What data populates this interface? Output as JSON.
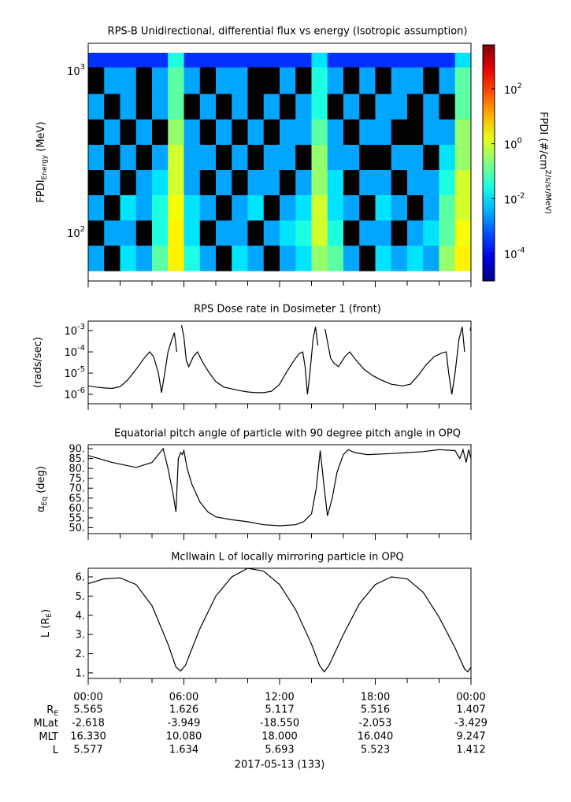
{
  "chart_data": [
    {
      "type": "heatmap",
      "title": "RPS-B  Unidirectional, differential flux vs energy (Isotropic assumption)",
      "ylabel": [
        {
          "text": "FPDI"
        },
        {
          "text": "Energy",
          "sub": true
        },
        {
          "text": " (MeV)"
        }
      ],
      "yscale": "log",
      "xlim": [
        0,
        24
      ],
      "ylim": [
        50.6,
        1480
      ],
      "yticks": [
        {
          "value": 100,
          "label": "10^2"
        },
        {
          "value": 1000,
          "label": "10^3"
        }
      ],
      "time_edges": [
        0,
        1,
        2,
        3,
        4,
        5,
        6,
        7,
        8,
        9,
        10,
        11,
        12,
        13,
        14,
        15,
        16,
        17,
        18,
        19,
        20,
        21,
        22,
        23,
        24
      ],
      "energy_edges": [
        58.5,
        84,
        120,
        172,
        246,
        352,
        505,
        725,
        1057,
        1294
      ],
      "z": [
        [
          0.003,
          null,
          0.01,
          0.003,
          0.1,
          3,
          0.03,
          0.003,
          null,
          0.01,
          0.003,
          null,
          0.003,
          0.01,
          0.3,
          0.1,
          0.003,
          null,
          0.01,
          0.003,
          0.01,
          0.003,
          0.3,
          3
        ],
        [
          null,
          0.003,
          0.003,
          null,
          0.03,
          3,
          0.01,
          null,
          0.003,
          0.003,
          null,
          0.003,
          0.01,
          0.03,
          1,
          0.03,
          null,
          0.003,
          0.003,
          null,
          0.003,
          0.01,
          0.1,
          2
        ],
        [
          0.003,
          null,
          0.01,
          0.003,
          0.03,
          2,
          0.01,
          0.003,
          null,
          0.003,
          0.01,
          null,
          0.003,
          0.01,
          1,
          0.01,
          0.003,
          null,
          0.01,
          0.003,
          null,
          0.003,
          0.1,
          1
        ],
        [
          null,
          0.003,
          null,
          0.003,
          0.01,
          1,
          0.003,
          null,
          0.003,
          null,
          0.003,
          0.003,
          null,
          0.003,
          0.3,
          0.01,
          null,
          0.003,
          0.003,
          null,
          0.003,
          0.003,
          0.03,
          1
        ],
        [
          0.003,
          null,
          0.003,
          null,
          0.003,
          1,
          0.003,
          0.003,
          null,
          0.003,
          null,
          0.003,
          0.003,
          null,
          0.3,
          0.003,
          0.003,
          null,
          null,
          0.003,
          0.003,
          null,
          0.01,
          0.3
        ],
        [
          null,
          0.003,
          null,
          0.003,
          null,
          0.3,
          0.003,
          null,
          0.003,
          null,
          0.003,
          null,
          0.003,
          0.003,
          0.1,
          0.003,
          null,
          0.003,
          0.003,
          null,
          null,
          0.003,
          0.003,
          0.3
        ],
        [
          0.003,
          null,
          0.003,
          null,
          0.003,
          0.1,
          null,
          0.003,
          null,
          0.003,
          null,
          0.003,
          null,
          0.003,
          0.03,
          null,
          0.003,
          null,
          0.003,
          0.003,
          null,
          0.003,
          null,
          0.1
        ],
        [
          null,
          0.003,
          0.003,
          null,
          0.003,
          0.1,
          0.003,
          null,
          0.003,
          0.003,
          null,
          null,
          0.003,
          null,
          0.03,
          0.003,
          null,
          0.003,
          null,
          0.003,
          0.003,
          null,
          0.003,
          0.1
        ],
        [
          0.0003,
          0.0003,
          0.0003,
          0.0003,
          0.0003,
          0.03,
          0.0003,
          0.0003,
          0.0003,
          0.0003,
          0.0003,
          0.0003,
          0.0003,
          0.0003,
          0.01,
          0.0003,
          0.0003,
          0.0003,
          0.0003,
          0.0003,
          0.0003,
          0.0003,
          0.0003,
          0.01
        ]
      ],
      "colorbar": {
        "label": "FPDI (#/cm^2/s/sr/MeV)",
        "scale": "log",
        "zlim": [
          1e-05,
          4000
        ],
        "ticks": [
          {
            "value": 0.0001,
            "label": "10^-4"
          },
          {
            "value": 0.01,
            "label": "10^-2"
          },
          {
            "value": 1,
            "label": "10^0"
          },
          {
            "value": 100,
            "label": "10^2"
          }
        ]
      }
    },
    {
      "type": "line",
      "title": "RPS  Dose rate in Dosimeter 1 (front)",
      "color": "#000000",
      "ylabel": [
        {
          "text": "(rads/sec)"
        }
      ],
      "yscale": "log",
      "xlim": [
        0,
        24
      ],
      "ylim": [
        3.6e-07,
        0.0028
      ],
      "yticks": [
        {
          "value": 0.001,
          "label": "10^-3"
        },
        {
          "value": 0.0001,
          "label": "10^-4"
        },
        {
          "value": 1e-05,
          "label": "10^-5"
        },
        {
          "value": 1e-06,
          "label": "10^-6"
        }
      ],
      "x": [
        0,
        0.5,
        1,
        1.5,
        2,
        2.5,
        3,
        3.5,
        3.85,
        4.1,
        4.4,
        4.6,
        4.8,
        5.0,
        5.2,
        5.4,
        5.55,
        5.6,
        5.85,
        6.0,
        6.15,
        6.3,
        6.6,
        6.85,
        7.2,
        7.6,
        8,
        8.5,
        9,
        9.5,
        10,
        10.5,
        11,
        11.5,
        12,
        12.4,
        12.8,
        13.2,
        13.45,
        13.6,
        13.75,
        13.9,
        14.1,
        14.25,
        14.4,
        14.55,
        14.85,
        15.0,
        15.2,
        15.4,
        15.7,
        16.1,
        16.4,
        16.8,
        17.3,
        17.8,
        18.3,
        19,
        19.7,
        20.2,
        20.7,
        21.2,
        21.7,
        22.2,
        22.45,
        22.6,
        22.8,
        23.0,
        23.25,
        23.45,
        23.6,
        23.7,
        23.95,
        24
      ],
      "values": [
        2.5e-06,
        2.2e-06,
        2e-06,
        1.9e-06,
        2.3e-06,
        5e-06,
        1.5e-05,
        5e-05,
        0.0001,
        6e-05,
        1e-05,
        1.2e-06,
        1e-05,
        0.0001,
        0.0003,
        0.0008,
        0.0001,
        null,
        0.0018,
        0.0005,
        4e-05,
        2e-05,
        6e-05,
        0.0001,
        3e-05,
        1e-05,
        4e-06,
        2.2e-06,
        1.8e-06,
        1.5e-06,
        1.3e-06,
        1.2e-06,
        1.2e-06,
        1.4e-06,
        3e-06,
        1e-05,
        3e-05,
        8e-05,
        0.0001,
        2e-05,
        1e-06,
        1e-05,
        0.0004,
        0.0015,
        0.0002,
        null,
        0.0012,
        0.0003,
        5e-05,
        3e-05,
        2e-05,
        6e-05,
        0.0001,
        4e-05,
        1.5e-05,
        8e-06,
        5e-06,
        3e-06,
        2.5e-06,
        3e-06,
        8e-06,
        2.5e-05,
        6e-05,
        9e-05,
        0.0001,
        1e-05,
        1e-06,
        1e-05,
        0.0004,
        0.0015,
        0.0001,
        null,
        0.001,
        0.0015
      ]
    },
    {
      "type": "line",
      "title": "Equatorial pitch angle of particle with 90 degree pitch angle in OPQ",
      "color": "#000000",
      "ylabel": [
        {
          "text": "α"
        },
        {
          "text": "Eq",
          "sub": true
        },
        {
          "text": " (deg)"
        }
      ],
      "yscale": "linear",
      "xlim": [
        0,
        24
      ],
      "ylim": [
        47,
        92
      ],
      "yticks": [
        {
          "value": 50,
          "label": "50."
        },
        {
          "value": 55,
          "label": "55."
        },
        {
          "value": 60,
          "label": "60."
        },
        {
          "value": 65,
          "label": "65."
        },
        {
          "value": 70,
          "label": "70."
        },
        {
          "value": 75,
          "label": "75."
        },
        {
          "value": 80,
          "label": "80."
        },
        {
          "value": 85,
          "label": "85."
        },
        {
          "value": 90,
          "label": "90."
        }
      ],
      "x": [
        0,
        1.5,
        3,
        4,
        4.5,
        4.7,
        5.0,
        5.3,
        5.5,
        5.65,
        5.8,
        5.9,
        6.0,
        6.2,
        6.5,
        7,
        7.5,
        8,
        9,
        10,
        11,
        12,
        13,
        13.5,
        14,
        14.3,
        14.55,
        14.8,
        15.0,
        15.3,
        15.6,
        16,
        16.3,
        16.7,
        17.5,
        19,
        21,
        22,
        23,
        23.3,
        23.5,
        23.7,
        23.85,
        24
      ],
      "values": [
        86.5,
        83,
        80.5,
        83,
        88,
        90,
        80,
        68,
        58,
        85,
        88,
        87,
        89,
        80,
        72,
        63,
        58,
        55.5,
        54,
        53,
        51.5,
        51,
        51.5,
        53,
        57,
        70,
        89,
        70,
        56,
        65,
        78,
        87,
        89.5,
        88,
        87,
        87.5,
        88.5,
        89.5,
        89,
        85,
        89.5,
        83,
        89.5,
        85
      ]
    },
    {
      "type": "line",
      "title": "McIlwain L of locally mirroring particle in OPQ",
      "color": "#000000",
      "ylabel": [
        {
          "text": "L (R"
        },
        {
          "text": "E",
          "sub": true
        },
        {
          "text": ")"
        }
      ],
      "yscale": "linear",
      "xlim": [
        0,
        24
      ],
      "ylim": [
        0.71,
        6.45
      ],
      "yticks": [
        {
          "value": 1,
          "label": "1."
        },
        {
          "value": 2,
          "label": "2."
        },
        {
          "value": 3,
          "label": "3."
        },
        {
          "value": 4,
          "label": "4."
        },
        {
          "value": 5,
          "label": "5."
        },
        {
          "value": 6,
          "label": "6."
        }
      ],
      "x": [
        0,
        1,
        2,
        3,
        4,
        5,
        5.5,
        5.8,
        6.1,
        7,
        8,
        9,
        10,
        11,
        12,
        13,
        14,
        14.5,
        14.8,
        15.1,
        16,
        17,
        18,
        19,
        20,
        21,
        22,
        23,
        23.6,
        23.8,
        24
      ],
      "values": [
        5.65,
        5.9,
        5.95,
        5.6,
        4.5,
        2.5,
        1.3,
        1.1,
        1.4,
        3.3,
        5.0,
        6.0,
        6.45,
        6.3,
        5.6,
        4.3,
        2.5,
        1.4,
        1.05,
        1.4,
        3.0,
        4.6,
        5.6,
        6.0,
        5.9,
        5.2,
        3.9,
        2.3,
        1.2,
        1.05,
        1.3
      ]
    }
  ],
  "time_axis": {
    "ticks": [
      {
        "value": 0,
        "label": "00:00"
      },
      {
        "value": 6,
        "label": "06:00"
      },
      {
        "value": 12,
        "label": "12:00"
      },
      {
        "value": 18,
        "label": "18:00"
      },
      {
        "value": 24,
        "label": "00:00"
      }
    ],
    "minor_ticks": [
      2,
      4,
      8,
      10,
      14,
      16,
      20,
      22
    ],
    "date": "2017-05-13 (133)",
    "rows": [
      {
        "label": [
          {
            "text": "R"
          },
          {
            "text": "E",
            "sub": true
          }
        ],
        "values": [
          "5.565",
          "1.626",
          "5.117",
          "5.516",
          "1.407"
        ]
      },
      {
        "label": [
          {
            "text": "MLat"
          }
        ],
        "values": [
          "-2.618",
          "-3.949",
          "-18.550",
          "-2.053",
          "-3.429"
        ]
      },
      {
        "label": [
          {
            "text": "MLT"
          }
        ],
        "values": [
          "16.330",
          "10.080",
          "18.000",
          "16.040",
          "9.247"
        ]
      },
      {
        "label": [
          {
            "text": "L"
          }
        ],
        "values": [
          "5.577",
          "1.634",
          "5.693",
          "5.523",
          "1.412"
        ]
      }
    ]
  }
}
